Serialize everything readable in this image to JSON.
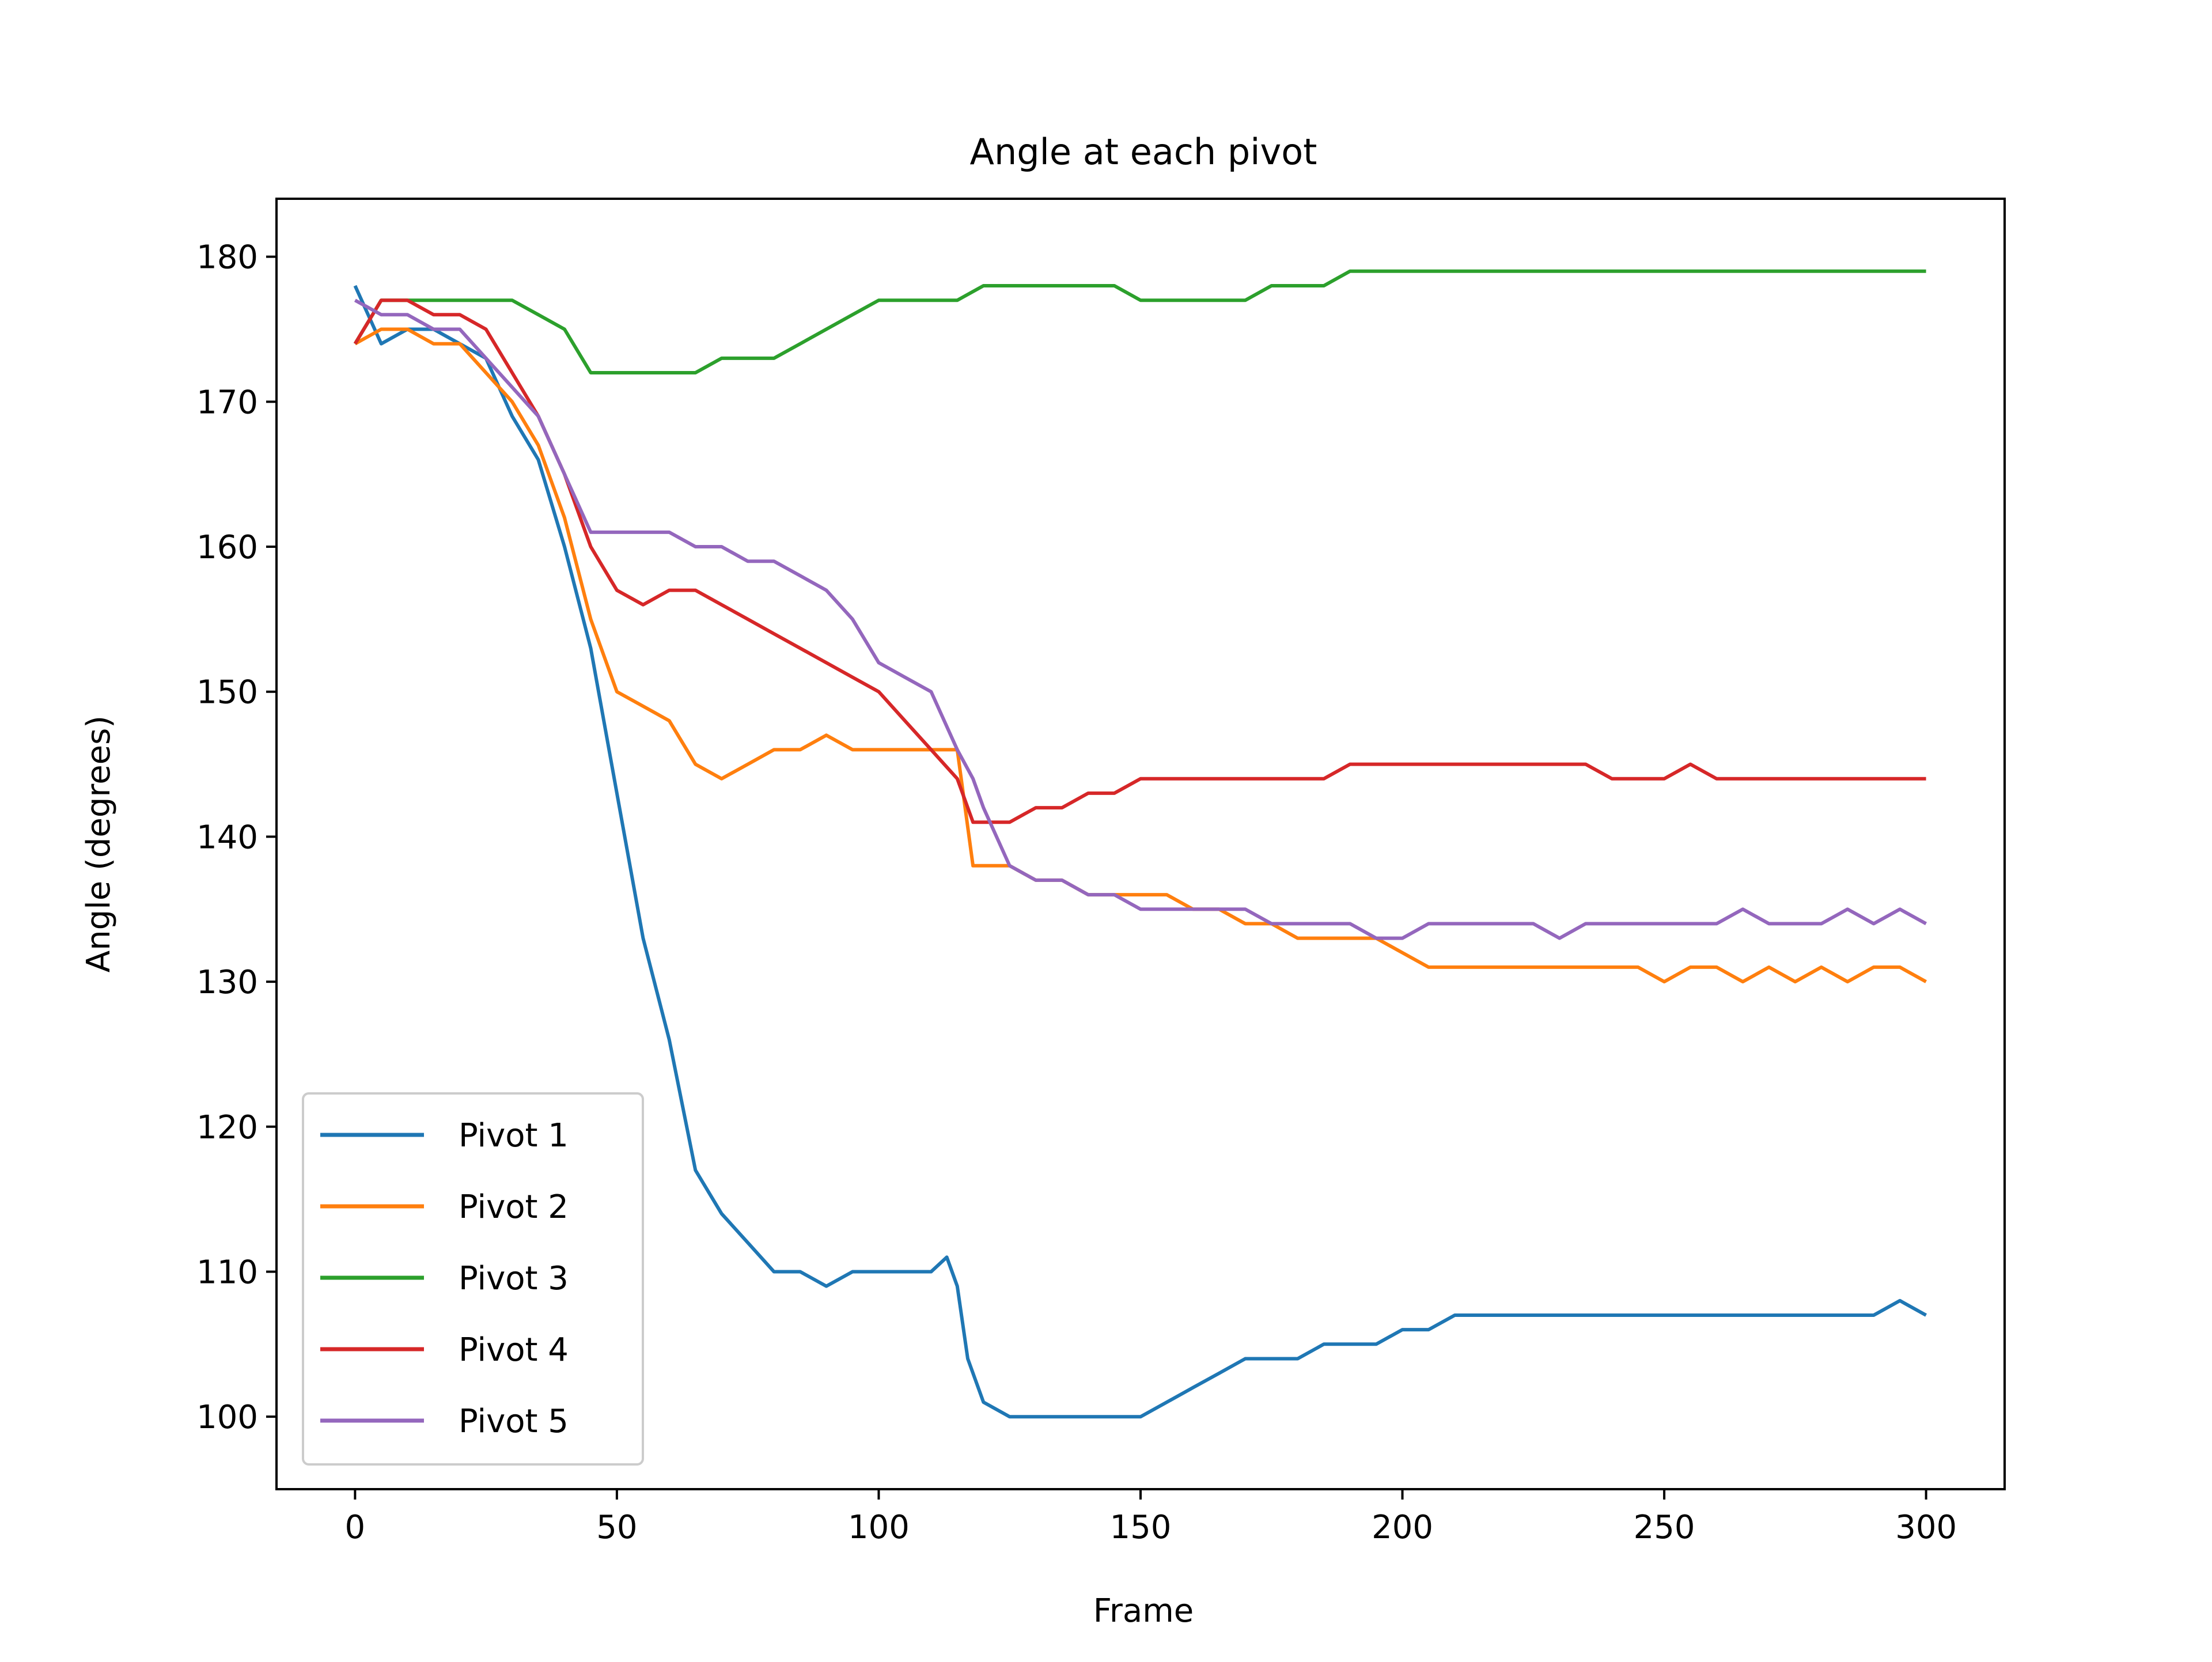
{
  "chart_data": {
    "type": "line",
    "title": "Angle at each pivot",
    "xlabel": "Frame",
    "ylabel": "Angle (degrees)",
    "xlim": [
      -15,
      315
    ],
    "ylim": [
      95,
      184
    ],
    "xticks": [
      0,
      50,
      100,
      150,
      200,
      250,
      300
    ],
    "yticks": [
      100,
      110,
      120,
      130,
      140,
      150,
      160,
      170,
      180
    ],
    "xtick_labels": [
      "0",
      "50",
      "100",
      "150",
      "200",
      "250",
      "300"
    ],
    "ytick_labels": [
      "100",
      "110",
      "120",
      "130",
      "140",
      "150",
      "160",
      "170",
      "180"
    ],
    "grid": false,
    "legend_position": "lower-left",
    "series": [
      {
        "name": "Pivot 1",
        "color": "#1f77b4",
        "x": [
          0,
          5,
          10,
          15,
          20,
          25,
          30,
          35,
          40,
          45,
          50,
          55,
          60,
          65,
          70,
          75,
          80,
          85,
          90,
          95,
          100,
          105,
          110,
          113,
          115,
          117,
          120,
          125,
          130,
          135,
          140,
          145,
          150,
          155,
          160,
          165,
          170,
          175,
          180,
          185,
          190,
          195,
          200,
          205,
          210,
          215,
          220,
          225,
          230,
          235,
          240,
          245,
          250,
          255,
          260,
          265,
          270,
          275,
          280,
          285,
          290,
          295,
          300
        ],
        "values": [
          178,
          174,
          175,
          175,
          174,
          173,
          169,
          166,
          160,
          153,
          143,
          133,
          126,
          117,
          114,
          112,
          110,
          110,
          109,
          110,
          110,
          110,
          110,
          111,
          109,
          104,
          101,
          100,
          100,
          100,
          100,
          100,
          100,
          101,
          102,
          103,
          104,
          104,
          104,
          105,
          105,
          105,
          106,
          106,
          107,
          107,
          107,
          107,
          107,
          107,
          107,
          107,
          107,
          107,
          107,
          107,
          107,
          107,
          107,
          107,
          107,
          108,
          107
        ]
      },
      {
        "name": "Pivot 2",
        "color": "#ff7f0e",
        "x": [
          0,
          5,
          10,
          15,
          20,
          25,
          30,
          35,
          40,
          45,
          50,
          55,
          60,
          65,
          70,
          75,
          80,
          85,
          90,
          95,
          100,
          105,
          110,
          115,
          118,
          120,
          125,
          130,
          135,
          140,
          145,
          150,
          155,
          160,
          165,
          170,
          175,
          180,
          185,
          190,
          195,
          200,
          205,
          210,
          215,
          220,
          225,
          230,
          235,
          240,
          245,
          250,
          255,
          260,
          265,
          270,
          275,
          280,
          285,
          290,
          295,
          300
        ],
        "values": [
          174,
          175,
          175,
          174,
          174,
          172,
          170,
          167,
          162,
          155,
          150,
          149,
          148,
          145,
          144,
          145,
          146,
          146,
          147,
          146,
          146,
          146,
          146,
          146,
          138,
          138,
          138,
          137,
          137,
          136,
          136,
          136,
          136,
          135,
          135,
          134,
          134,
          133,
          133,
          133,
          133,
          132,
          131,
          131,
          131,
          131,
          131,
          131,
          131,
          131,
          131,
          130,
          131,
          131,
          130,
          131,
          130,
          131,
          130,
          131,
          131,
          130
        ]
      },
      {
        "name": "Pivot 3",
        "color": "#2ca02c",
        "x": [
          0,
          5,
          10,
          15,
          20,
          25,
          30,
          35,
          40,
          45,
          50,
          55,
          60,
          65,
          70,
          75,
          80,
          85,
          90,
          95,
          100,
          105,
          110,
          115,
          120,
          125,
          130,
          135,
          140,
          145,
          150,
          155,
          160,
          165,
          170,
          175,
          180,
          185,
          190,
          195,
          200,
          205,
          210,
          215,
          220,
          225,
          230,
          235,
          240,
          245,
          250,
          255,
          260,
          265,
          270,
          275,
          280,
          285,
          290,
          295,
          300
        ],
        "values": [
          174,
          177,
          177,
          177,
          177,
          177,
          177,
          176,
          175,
          172,
          172,
          172,
          172,
          172,
          173,
          173,
          173,
          174,
          175,
          176,
          177,
          177,
          177,
          177,
          178,
          178,
          178,
          178,
          178,
          178,
          177,
          177,
          177,
          177,
          177,
          178,
          178,
          178,
          179,
          179,
          179,
          179,
          179,
          179,
          179,
          179,
          179,
          179,
          179,
          179,
          179,
          179,
          179,
          179,
          179,
          179,
          179,
          179,
          179,
          179,
          179
        ]
      },
      {
        "name": "Pivot 4",
        "color": "#d62728",
        "x": [
          0,
          5,
          10,
          15,
          20,
          25,
          30,
          35,
          40,
          45,
          50,
          55,
          60,
          65,
          70,
          75,
          80,
          85,
          90,
          95,
          100,
          105,
          110,
          115,
          118,
          120,
          125,
          130,
          135,
          140,
          145,
          150,
          155,
          160,
          165,
          170,
          175,
          180,
          185,
          190,
          195,
          200,
          205,
          210,
          215,
          220,
          225,
          230,
          235,
          240,
          245,
          250,
          255,
          260,
          265,
          270,
          275,
          280,
          285,
          290,
          295,
          300
        ],
        "values": [
          174,
          177,
          177,
          176,
          176,
          175,
          172,
          169,
          165,
          160,
          157,
          156,
          157,
          157,
          156,
          155,
          154,
          153,
          152,
          151,
          150,
          148,
          146,
          144,
          141,
          141,
          141,
          142,
          142,
          143,
          143,
          144,
          144,
          144,
          144,
          144,
          144,
          144,
          144,
          145,
          145,
          145,
          145,
          145,
          145,
          145,
          145,
          145,
          145,
          144,
          144,
          144,
          145,
          144,
          144,
          144,
          144,
          144,
          144,
          144,
          144,
          144
        ]
      },
      {
        "name": "Pivot 5",
        "color": "#9467bd",
        "x": [
          0,
          5,
          10,
          15,
          20,
          25,
          30,
          35,
          40,
          45,
          50,
          55,
          60,
          65,
          70,
          75,
          80,
          85,
          90,
          95,
          100,
          105,
          110,
          115,
          118,
          120,
          125,
          130,
          135,
          140,
          145,
          150,
          155,
          160,
          165,
          170,
          175,
          180,
          185,
          190,
          195,
          200,
          205,
          210,
          215,
          220,
          225,
          230,
          235,
          240,
          245,
          250,
          255,
          260,
          265,
          270,
          275,
          280,
          285,
          290,
          295,
          300
        ],
        "values": [
          177,
          176,
          176,
          175,
          175,
          173,
          171,
          169,
          165,
          161,
          161,
          161,
          161,
          160,
          160,
          159,
          159,
          158,
          157,
          155,
          152,
          151,
          150,
          146,
          144,
          142,
          138,
          137,
          137,
          136,
          136,
          135,
          135,
          135,
          135,
          135,
          134,
          134,
          134,
          134,
          133,
          133,
          134,
          134,
          134,
          134,
          134,
          133,
          134,
          134,
          134,
          134,
          134,
          134,
          135,
          134,
          134,
          134,
          135,
          134,
          135,
          134
        ]
      }
    ]
  }
}
